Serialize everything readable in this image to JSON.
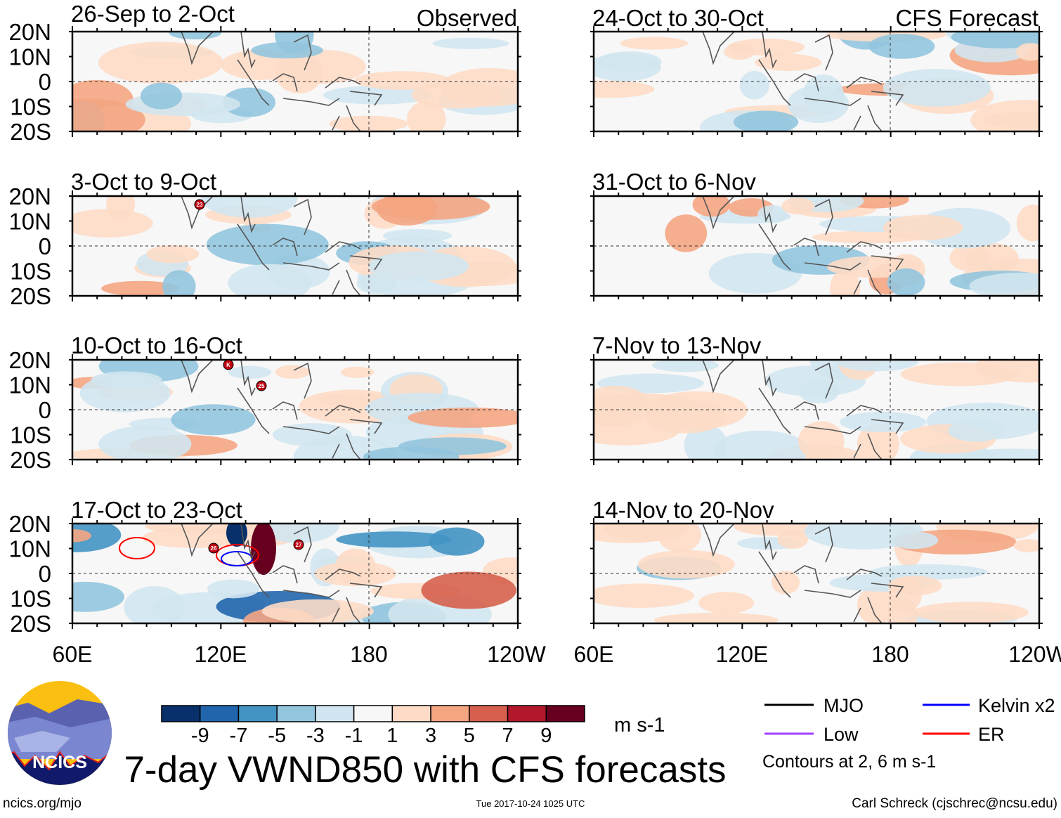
{
  "figure": {
    "title": "7-day VWND850 with CFS forecasts",
    "observed_label": "Observed",
    "forecast_label": "CFS Forecast",
    "website": "ncics.org/mjo",
    "timestamp": "Tue 2017-10-24 1025 UTC",
    "author": "Carl Schreck (cjschrec@ncsu.edu)",
    "logo_text": "NCICS"
  },
  "axes": {
    "lat_ticks": [
      "20N",
      "10N",
      "0",
      "10S",
      "20S"
    ],
    "lon_ticks": [
      "60E",
      "120E",
      "180",
      "120W"
    ]
  },
  "panels": {
    "observed": [
      {
        "title": "26-Sep to 2-Oct",
        "storms": []
      },
      {
        "title": "3-Oct to 9-Oct",
        "storms": [
          "23"
        ]
      },
      {
        "title": "10-Oct to 16-Oct",
        "storms": [
          "K",
          "25"
        ]
      },
      {
        "title": "17-Oct to 23-Oct",
        "storms": [
          "26",
          "27"
        ]
      }
    ],
    "forecast": [
      {
        "title": "24-Oct to 30-Oct"
      },
      {
        "title": "31-Oct to 6-Nov"
      },
      {
        "title": "7-Nov to 13-Nov"
      },
      {
        "title": "14-Nov to 20-Nov"
      }
    ]
  },
  "colorbar": {
    "units": "m s-1",
    "labels": [
      "-9",
      "-7",
      "-5",
      "-3",
      "-1",
      "1",
      "3",
      "5",
      "7",
      "9"
    ],
    "colors": [
      "#08306b",
      "#2166ac",
      "#4393c3",
      "#92c5de",
      "#d1e5f0",
      "#f7f7f7",
      "#fddbc7",
      "#f4a582",
      "#d6604d",
      "#b2182b",
      "#67001f"
    ]
  },
  "legend": {
    "items": [
      {
        "label": "MJO",
        "color": "#000000"
      },
      {
        "label": "Kelvin x2",
        "color": "#0000ff"
      },
      {
        "label": "Low",
        "color": "#a040ff"
      },
      {
        "label": "ER",
        "color": "#ff0000"
      }
    ],
    "note": "Contours at 2, 6 m s-1"
  }
}
